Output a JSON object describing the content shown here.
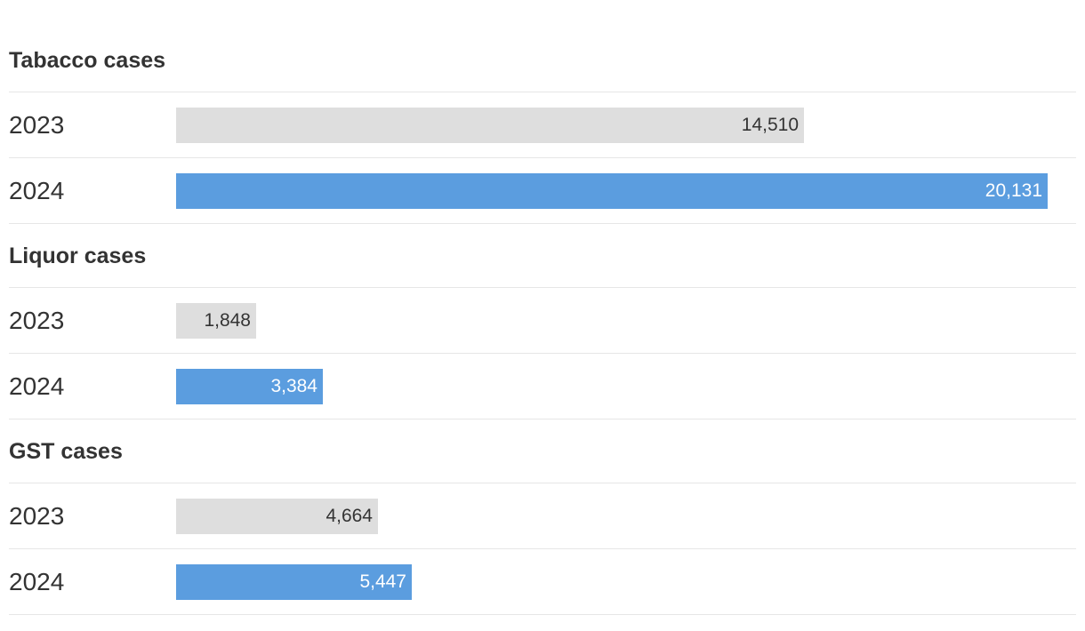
{
  "chart_data": {
    "type": "bar",
    "orientation": "horizontal",
    "xlim": [
      0,
      20131
    ],
    "colors": {
      "2023": "#dedede",
      "2024": "#5b9ddf"
    },
    "label_colors": {
      "2023": "#333333",
      "2024": "#ffffff"
    },
    "groups": [
      {
        "title": "Tabacco cases",
        "rows": [
          {
            "year": "2023",
            "value": 14510,
            "label": "14,510"
          },
          {
            "year": "2024",
            "value": 20131,
            "label": "20,131"
          }
        ]
      },
      {
        "title": "Liquor cases",
        "rows": [
          {
            "year": "2023",
            "value": 1848,
            "label": "1,848"
          },
          {
            "year": "2024",
            "value": 3384,
            "label": "3,384"
          }
        ]
      },
      {
        "title": "GST cases",
        "rows": [
          {
            "year": "2023",
            "value": 4664,
            "label": "4,664"
          },
          {
            "year": "2024",
            "value": 5447,
            "label": "5,447"
          }
        ]
      }
    ]
  }
}
